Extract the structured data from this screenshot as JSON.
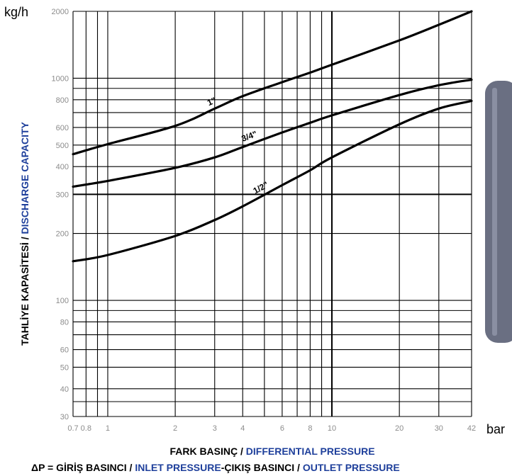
{
  "chart_data": {
    "type": "line",
    "x_scale": "log",
    "y_scale": "log",
    "xlim": [
      0.7,
      42
    ],
    "ylim": [
      30,
      2000
    ],
    "grid": true,
    "y_unit": "kg/h",
    "x_unit": "bar",
    "ylabel_tr": "TAHLİYE KAPASİTESİ",
    "ylabel_sep": " / ",
    "ylabel_en": "DISCHARGE CAPACITY",
    "xlabel_tr": "FARK BASINÇ",
    "xlabel_sep": " / ",
    "xlabel_en": "DIFFERENTIAL PRESSURE",
    "xlabel2_a": "ΔP = GİRİŞ BASINCI",
    "xlabel2_sep1": " / ",
    "xlabel2_b": "INLET PRESSURE",
    "xlabel2_c": "-ÇIKIŞ BASINCI",
    "xlabel2_sep2": " / ",
    "xlabel2_d": "OUTLET PRESSURE",
    "x_ticks": [
      {
        "value": 0.7,
        "label": "0.7"
      },
      {
        "value": 0.8,
        "label": "0.8"
      },
      {
        "value": 1,
        "label": "1"
      },
      {
        "value": 2,
        "label": "2"
      },
      {
        "value": 3,
        "label": "3"
      },
      {
        "value": 4,
        "label": "4"
      },
      {
        "value": 6,
        "label": "6"
      },
      {
        "value": 8,
        "label": "8"
      },
      {
        "value": 10,
        "label": "10"
      },
      {
        "value": 20,
        "label": "20"
      },
      {
        "value": 30,
        "label": "30"
      },
      {
        "value": 42,
        "label": "42"
      }
    ],
    "x_grid": [
      0.7,
      0.8,
      0.9,
      1,
      2,
      3,
      4,
      5,
      6,
      7,
      8,
      9,
      10,
      20,
      30,
      42
    ],
    "y_ticks": [
      {
        "value": 30,
        "label": "30"
      },
      {
        "value": 40,
        "label": "40"
      },
      {
        "value": 50,
        "label": "50"
      },
      {
        "value": 60,
        "label": "60"
      },
      {
        "value": 80,
        "label": "80"
      },
      {
        "value": 100,
        "label": "100"
      },
      {
        "value": 200,
        "label": "200"
      },
      {
        "value": 300,
        "label": "300"
      },
      {
        "value": 400,
        "label": "400"
      },
      {
        "value": 500,
        "label": "500"
      },
      {
        "value": 600,
        "label": "600"
      },
      {
        "value": 800,
        "label": "800"
      },
      {
        "value": 1000,
        "label": "1000"
      },
      {
        "value": 2000,
        "label": "2000"
      }
    ],
    "y_grid": [
      30,
      35,
      40,
      50,
      60,
      70,
      80,
      90,
      100,
      200,
      300,
      400,
      500,
      600,
      700,
      800,
      900,
      1000,
      2000
    ],
    "emphasis": {
      "x": 10,
      "y": 300
    },
    "series": [
      {
        "name": "1\"",
        "x": [
          0.7,
          1,
          2,
          3,
          4,
          6,
          8,
          10,
          20,
          30,
          42
        ],
        "y": [
          455,
          505,
          610,
          730,
          830,
          960,
          1060,
          1150,
          1480,
          1740,
          2000
        ]
      },
      {
        "name": "3/4\"",
        "x": [
          0.7,
          1,
          2,
          3,
          4,
          6,
          8,
          10,
          20,
          30,
          42
        ],
        "y": [
          325,
          345,
          395,
          440,
          490,
          570,
          630,
          680,
          840,
          930,
          985
        ]
      },
      {
        "name": "1/2\"",
        "x": [
          0.7,
          1,
          2,
          3,
          4,
          6,
          8,
          10,
          20,
          30,
          42
        ],
        "y": [
          150,
          160,
          195,
          230,
          265,
          330,
          385,
          440,
          620,
          730,
          790
        ]
      }
    ]
  },
  "colors": {
    "text": "#000000",
    "english_text": "#1e3f9b",
    "grid": "#000000",
    "curve": "#000000",
    "tick_label": "#8c8c8c",
    "tube": "#6a6f82"
  }
}
